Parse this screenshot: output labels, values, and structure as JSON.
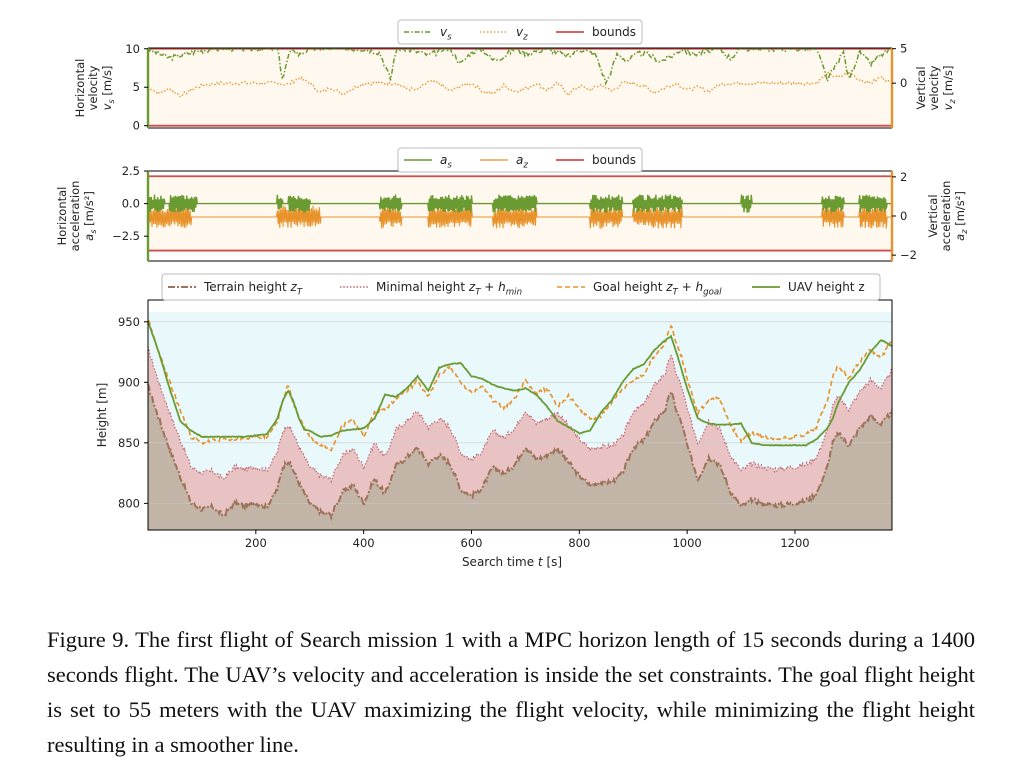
{
  "chart_data": [
    {
      "type": "line",
      "panel": "velocity",
      "xlim": [
        0,
        1380
      ],
      "left_axis": {
        "label_lines": [
          "Horizontal",
          "velocity"
        ],
        "unit_label": "v_s [m/s]",
        "ylim": [
          -0.3,
          10.1
        ],
        "ticks": [
          0,
          5,
          10
        ]
      },
      "right_axis": {
        "label_lines": [
          "Vertical",
          "velocity"
        ],
        "unit_label": "v_z [m/s]",
        "ylim": [
          -6.5,
          5.1
        ],
        "ticks": [
          0,
          5
        ]
      },
      "legend": {
        "position": "top-center",
        "entries": [
          "v_s",
          "v_z",
          "bounds"
        ]
      },
      "series": [
        {
          "name": "v_s",
          "axis": "left",
          "style": "dash-dot",
          "color": "#6a9a32",
          "x": [
            0,
            40,
            80,
            120,
            140,
            160,
            200,
            240,
            250,
            260,
            270,
            280,
            300,
            340,
            400,
            430,
            450,
            460,
            480,
            520,
            560,
            580,
            600,
            620,
            640,
            660,
            680,
            700,
            740,
            780,
            800,
            830,
            850,
            870,
            890,
            910,
            930,
            950,
            970,
            990,
            1010,
            1030,
            1060,
            1080,
            1100,
            1130,
            1160,
            1200,
            1240,
            1260,
            1290,
            1300,
            1320,
            1340,
            1360,
            1380
          ],
          "y": [
            10,
            8.8,
            9.5,
            10,
            10,
            10,
            10,
            10,
            6,
            9,
            10,
            9.2,
            10,
            10,
            10,
            9.5,
            6,
            10,
            10,
            9.2,
            10,
            8,
            9.6,
            10,
            8.5,
            9,
            10,
            9.4,
            10,
            9,
            10,
            9.3,
            5.5,
            9.2,
            8.5,
            9.4,
            9.2,
            8.4,
            9,
            10,
            9.3,
            9.5,
            10,
            8.8,
            10,
            10,
            10,
            10,
            10,
            6,
            9.5,
            6,
            9.6,
            8,
            9.2,
            10
          ]
        },
        {
          "name": "v_z",
          "axis": "right",
          "style": "dotted",
          "color": "#e8922a",
          "x": [
            0,
            20,
            40,
            60,
            80,
            100,
            130,
            160,
            200,
            240,
            260,
            280,
            300,
            320,
            340,
            360,
            400,
            430,
            460,
            480,
            500,
            520,
            540,
            560,
            580,
            600,
            620,
            640,
            660,
            680,
            700,
            720,
            740,
            760,
            780,
            800,
            820,
            840,
            860,
            880,
            900,
            920,
            940,
            960,
            980,
            1000,
            1020,
            1040,
            1060,
            1080,
            1100,
            1130,
            1160,
            1200,
            1240,
            1260,
            1280,
            1300,
            1320,
            1340,
            1360,
            1380
          ],
          "y": [
            -0.5,
            -1.5,
            -0.8,
            -1.8,
            -1.0,
            -0.3,
            0,
            0,
            0,
            0,
            -0.2,
            0.8,
            0,
            -1.4,
            -0.6,
            -1.6,
            0,
            0,
            0,
            -0.8,
            -1.0,
            0.2,
            0,
            -1.2,
            -0.4,
            0,
            -1.1,
            -1.6,
            -0.3,
            -1.2,
            -0.8,
            0,
            -1.0,
            0,
            -1.6,
            -0.4,
            -1.0,
            -0.2,
            -1.2,
            0,
            0,
            -0.4,
            -1.4,
            -0.6,
            0,
            -1.0,
            -0.6,
            -1.2,
            -0.2,
            0,
            0,
            0,
            0,
            0,
            0,
            1.4,
            0.8,
            1.5,
            0.5,
            0,
            0.9,
            0
          ]
        },
        {
          "name": "bounds",
          "axis": "left",
          "style": "solid",
          "color": "#d24b4b",
          "x": [
            0,
            1380
          ],
          "y_values": [
            0,
            10
          ]
        }
      ]
    },
    {
      "type": "line",
      "panel": "acceleration",
      "xlim": [
        0,
        1380
      ],
      "left_axis": {
        "label_lines": [
          "Horizontal",
          "acceleration"
        ],
        "unit_label": "a_s [m/s²]",
        "ylim": [
          -4.4,
          2.5
        ],
        "ticks": [
          -2.5,
          0.0,
          2.5
        ],
        "tick_labels": [
          "−2.5",
          "0.0",
          "2.5"
        ]
      },
      "right_axis": {
        "label_lines": [
          "Vertical",
          "acceleration"
        ],
        "unit_label": "a_z [m/s²]",
        "ylim": [
          -2.3,
          2.3
        ],
        "ticks": [
          -2,
          0,
          2
        ],
        "tick_labels": [
          "−2",
          "0",
          "2"
        ]
      },
      "legend": {
        "position": "top-center",
        "entries": [
          "a_s",
          "a_z",
          "bounds"
        ]
      },
      "series": [
        {
          "name": "a_s",
          "axis": "left",
          "style": "solid",
          "color": "#6a9a32",
          "baseline": 0.0,
          "amplitude": 0.7,
          "active_windows": [
            [
              0,
              30
            ],
            [
              40,
              90
            ],
            [
              240,
              250
            ],
            [
              260,
              300
            ],
            [
              430,
              470
            ],
            [
              520,
              600
            ],
            [
              640,
              720
            ],
            [
              820,
              880
            ],
            [
              900,
              990
            ],
            [
              1100,
              1120
            ],
            [
              1250,
              1290
            ],
            [
              1320,
              1370
            ]
          ]
        },
        {
          "name": "a_z",
          "axis": "right",
          "style": "solid",
          "color": "#e8922a",
          "baseline": 0.0,
          "amplitude": 0.6,
          "active_windows": [
            [
              0,
              80
            ],
            [
              240,
              320
            ],
            [
              430,
              470
            ],
            [
              520,
              600
            ],
            [
              640,
              720
            ],
            [
              820,
              880
            ],
            [
              900,
              990
            ],
            [
              1250,
              1290
            ],
            [
              1320,
              1370
            ]
          ]
        },
        {
          "name": "bounds",
          "axis": "left",
          "style": "solid",
          "color": "#d24b4b",
          "y_values": [
            -3.6,
            2.1
          ]
        }
      ]
    },
    {
      "type": "area",
      "panel": "height",
      "xlim": [
        0,
        1380
      ],
      "ylim": [
        778,
        968
      ],
      "xticks": [
        200,
        400,
        600,
        800,
        1000,
        1200
      ],
      "yticks": [
        800,
        850,
        900,
        950
      ],
      "xlabel": "Search time t [s]",
      "ylabel": "Height [m]",
      "legend": {
        "position": "top",
        "entries": [
          "Terrain height z_T",
          "Minimal height z_T + h_min",
          "Goal height z_T + h_goal",
          "UAV height z"
        ]
      },
      "x": [
        0,
        20,
        40,
        60,
        80,
        100,
        120,
        140,
        160,
        180,
        200,
        220,
        240,
        250,
        260,
        270,
        280,
        290,
        300,
        320,
        340,
        360,
        380,
        400,
        420,
        440,
        460,
        480,
        500,
        520,
        540,
        560,
        580,
        600,
        620,
        640,
        660,
        680,
        700,
        720,
        740,
        760,
        780,
        800,
        820,
        840,
        860,
        880,
        900,
        920,
        940,
        960,
        970,
        980,
        990,
        1000,
        1020,
        1040,
        1060,
        1080,
        1100,
        1120,
        1140,
        1160,
        1180,
        1200,
        1220,
        1240,
        1260,
        1270,
        1280,
        1300,
        1320,
        1340,
        1360,
        1380
      ],
      "terrain": [
        897,
        870,
        845,
        822,
        800,
        795,
        797,
        790,
        800,
        798,
        800,
        797,
        812,
        830,
        835,
        827,
        817,
        808,
        800,
        793,
        790,
        809,
        815,
        800,
        820,
        808,
        831,
        838,
        846,
        833,
        840,
        833,
        812,
        806,
        813,
        830,
        824,
        832,
        847,
        836,
        840,
        845,
        834,
        823,
        815,
        817,
        817,
        825,
        846,
        852,
        868,
        878,
        893,
        877,
        866,
        848,
        820,
        838,
        832,
        810,
        797,
        803,
        800,
        798,
        799,
        800,
        802,
        808,
        830,
        850,
        858,
        848,
        862,
        872,
        865,
        876
      ],
      "minimal": [
        928,
        900,
        875,
        852,
        830,
        825,
        827,
        820,
        830,
        828,
        830,
        827,
        842,
        860,
        865,
        857,
        847,
        838,
        830,
        823,
        820,
        839,
        845,
        830,
        850,
        838,
        861,
        868,
        876,
        863,
        870,
        863,
        842,
        836,
        843,
        860,
        854,
        862,
        877,
        866,
        870,
        875,
        864,
        853,
        845,
        847,
        847,
        855,
        876,
        882,
        898,
        908,
        923,
        907,
        896,
        878,
        850,
        868,
        862,
        840,
        827,
        833,
        830,
        828,
        829,
        830,
        832,
        838,
        860,
        880,
        888,
        878,
        892,
        902,
        895,
        910
      ],
      "goal": [
        952,
        925,
        900,
        877,
        855,
        850,
        852,
        853,
        853,
        853,
        855,
        855,
        867,
        885,
        898,
        882,
        872,
        863,
        855,
        848,
        845,
        864,
        870,
        855,
        875,
        878,
        886,
        893,
        901,
        888,
        906,
        913,
        900,
        891,
        898,
        885,
        879,
        887,
        902,
        891,
        895,
        880,
        889,
        878,
        870,
        872,
        884,
        895,
        901,
        907,
        923,
        933,
        948,
        932,
        921,
        903,
        875,
        885,
        887,
        865,
        852,
        858,
        855,
        853,
        854,
        855,
        857,
        863,
        885,
        905,
        913,
        903,
        917,
        927,
        920,
        935
      ],
      "uav": [
        950,
        925,
        895,
        868,
        860,
        855,
        855,
        855,
        855,
        855,
        856,
        857,
        870,
        885,
        893,
        884,
        870,
        861,
        860,
        855,
        856,
        860,
        861,
        862,
        870,
        890,
        888,
        895,
        905,
        893,
        912,
        915,
        916,
        905,
        903,
        898,
        895,
        893,
        895,
        890,
        880,
        868,
        863,
        858,
        860,
        875,
        885,
        900,
        911,
        915,
        927,
        935,
        938,
        925,
        910,
        895,
        870,
        866,
        865,
        865,
        866,
        850,
        848,
        848,
        848,
        848,
        848,
        853,
        862,
        870,
        883,
        900,
        910,
        925,
        935,
        930
      ]
    }
  ],
  "caption": "Figure 9. The first flight of Search mission 1 with a MPC horizon length of 15 seconds during a 1400 seconds flight. The UAV’s velocity and acceleration is inside the set constraints. The goal flight height is set to 55 meters with the UAV maximizing the flight velocity, while minimizing the flight height resulting in a smoother line.",
  "colors": {
    "uav": "#6a9a32",
    "orange": "#e8922a",
    "bounds": "#d24b4b",
    "terrain_line": "#9c7258",
    "terrain_fill": "#c2b4a6",
    "minimal_fill": "#e9c3c3",
    "sky_fill": "#e8f8fb",
    "velocity_fill": "#fff8ee",
    "terrain_axis": "#999999"
  }
}
